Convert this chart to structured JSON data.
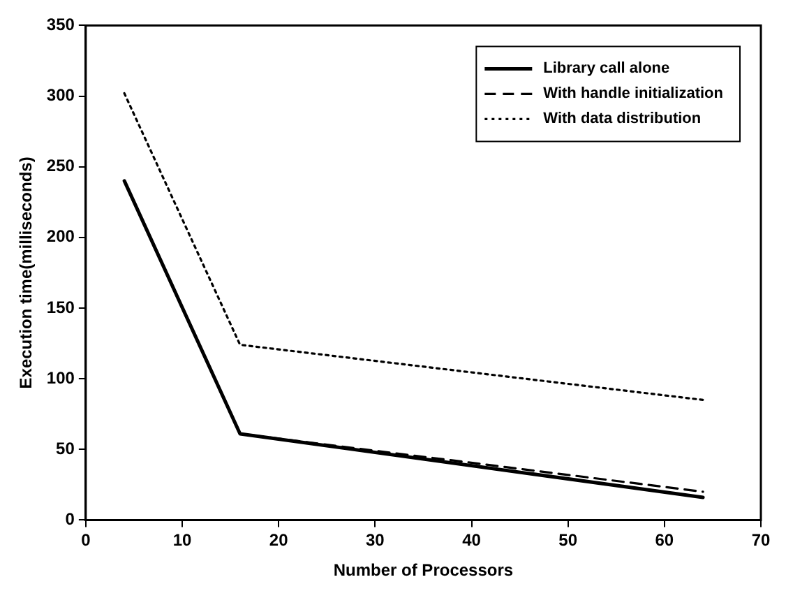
{
  "chart_data": {
    "type": "line",
    "xlabel": "Number of Processors",
    "ylabel": "Execution time(milliseconds)",
    "x": [
      4,
      16,
      64
    ],
    "series": [
      {
        "name": "Library call alone",
        "color": "#000000",
        "line_style": "solid",
        "values": [
          240,
          61,
          16
        ]
      },
      {
        "name": "With handle initialization",
        "color": "#000000",
        "line_style": "dashed",
        "values": [
          240,
          61,
          20
        ]
      },
      {
        "name": "With data distribution",
        "color": "#000000",
        "line_style": "dotted",
        "values": [
          302,
          124,
          85
        ]
      }
    ],
    "xlim": [
      0,
      70
    ],
    "xticks": [
      0,
      10,
      20,
      30,
      40,
      50,
      60,
      70
    ],
    "ylim": [
      0,
      350
    ],
    "yticks": [
      0,
      50,
      100,
      150,
      200,
      250,
      300,
      350
    ],
    "grid": false,
    "legend": "top right",
    "marker": "none"
  }
}
